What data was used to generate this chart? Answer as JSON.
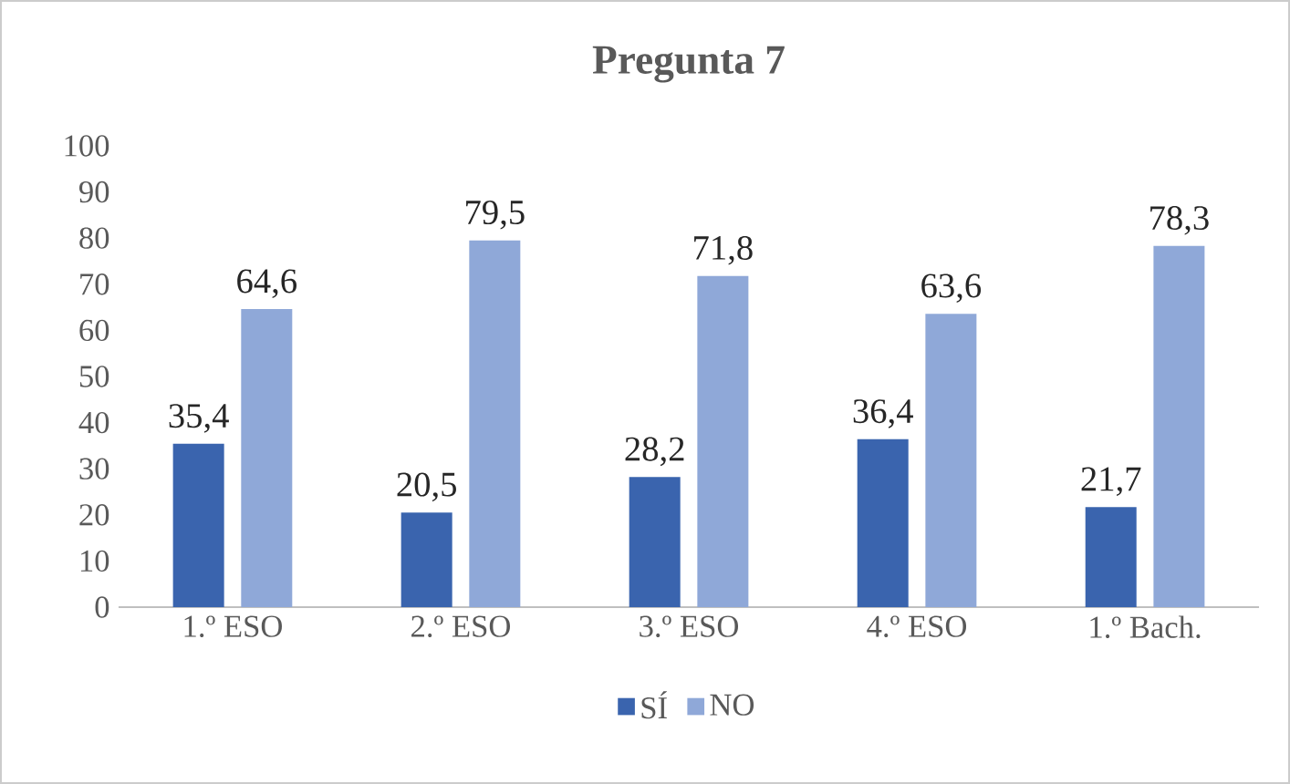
{
  "chart_data": {
    "type": "bar",
    "title": "Pregunta 7",
    "categories": [
      "1.º ESO",
      "2.º ESO",
      "3.º ESO",
      "4.º ESO",
      "1.º Bach."
    ],
    "series": [
      {
        "name": "SÍ",
        "color": "#3a64ae",
        "values": [
          35.4,
          20.5,
          28.2,
          36.4,
          21.7
        ],
        "value_labels": [
          "35,4",
          "20,5",
          "28,2",
          "36,4",
          "21,7"
        ]
      },
      {
        "name": "NO",
        "color": "#8fa8d8",
        "values": [
          64.6,
          79.5,
          71.8,
          63.6,
          78.3
        ],
        "value_labels": [
          "64,6",
          "79,5",
          "71,8",
          "63,6",
          "78,3"
        ]
      }
    ],
    "ylim": [
      0,
      100
    ],
    "yticks": [
      0,
      10,
      20,
      30,
      40,
      50,
      60,
      70,
      80,
      90,
      100
    ],
    "grid": false,
    "legend": "bottom"
  }
}
